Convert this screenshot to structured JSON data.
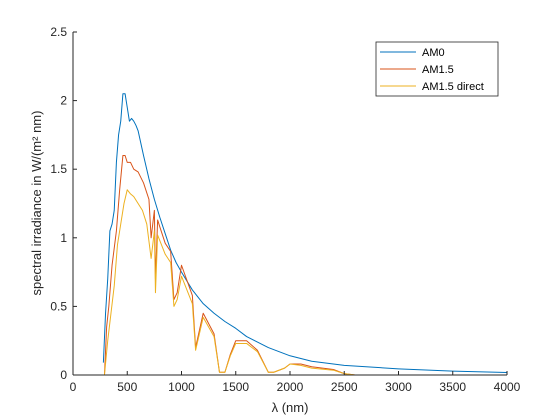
{
  "chart_data": {
    "type": "line",
    "xlabel": "λ (nm)",
    "ylabel": "spectral irradiance in W/(m² nm)",
    "xlim": [
      0,
      4000
    ],
    "ylim": [
      0,
      2.5
    ],
    "xticks": [
      "0",
      "500",
      "1000",
      "1500",
      "2000",
      "2500",
      "3000",
      "3500",
      "4000"
    ],
    "yticks": [
      "0",
      "0.5",
      "1",
      "1.5",
      "2",
      "2.5"
    ],
    "grid": false,
    "legend_position": "top-right",
    "series": [
      {
        "name": "AM0",
        "color": "#0072BD",
        "x": [
          280,
          300,
          320,
          340,
          360,
          380,
          400,
          420,
          440,
          460,
          480,
          500,
          520,
          540,
          560,
          580,
          600,
          650,
          700,
          750,
          800,
          850,
          900,
          950,
          1000,
          1100,
          1200,
          1300,
          1400,
          1500,
          1600,
          1700,
          1800,
          1900,
          2000,
          2200,
          2500,
          3000,
          3500,
          4000
        ],
        "y": [
          0.09,
          0.45,
          0.7,
          1.05,
          1.1,
          1.2,
          1.55,
          1.75,
          1.85,
          2.05,
          2.05,
          1.95,
          1.85,
          1.87,
          1.85,
          1.82,
          1.78,
          1.6,
          1.43,
          1.28,
          1.15,
          1.03,
          0.91,
          0.82,
          0.75,
          0.62,
          0.52,
          0.45,
          0.39,
          0.34,
          0.28,
          0.24,
          0.2,
          0.17,
          0.14,
          0.1,
          0.07,
          0.045,
          0.028,
          0.018
        ]
      },
      {
        "name": "AM1.5",
        "color": "#D95319",
        "x": [
          290,
          310,
          330,
          360,
          400,
          430,
          460,
          480,
          500,
          530,
          560,
          600,
          650,
          700,
          720,
          750,
          760,
          780,
          800,
          850,
          900,
          930,
          960,
          1000,
          1100,
          1130,
          1200,
          1300,
          1350,
          1400,
          1450,
          1500,
          1600,
          1700,
          1800,
          1850,
          1950,
          2000,
          2100,
          2200,
          2400,
          2500,
          2600,
          3000,
          3500,
          4000
        ],
        "y": [
          0,
          0.35,
          0.5,
          0.8,
          1.05,
          1.35,
          1.6,
          1.6,
          1.55,
          1.55,
          1.5,
          1.48,
          1.4,
          1.28,
          1.0,
          1.2,
          0.7,
          1.13,
          1.08,
          0.96,
          0.9,
          0.55,
          0.6,
          0.8,
          0.58,
          0.2,
          0.45,
          0.3,
          0.02,
          0.02,
          0.15,
          0.25,
          0.25,
          0.18,
          0.02,
          0.02,
          0.05,
          0.08,
          0.08,
          0.06,
          0.04,
          0.01,
          0,
          0,
          0,
          0
        ]
      },
      {
        "name": "AM1.5 direct",
        "color": "#EDB120",
        "x": [
          290,
          320,
          350,
          380,
          410,
          440,
          470,
          500,
          530,
          560,
          600,
          640,
          680,
          720,
          750,
          760,
          780,
          800,
          850,
          900,
          930,
          960,
          1000,
          1100,
          1130,
          1200,
          1300,
          1350,
          1400,
          1450,
          1500,
          1600,
          1700,
          1800,
          1850,
          1950,
          2000,
          2100,
          2200,
          2400,
          2500,
          2600,
          3000,
          3500,
          4000
        ],
        "y": [
          0,
          0.25,
          0.45,
          0.65,
          0.95,
          1.1,
          1.25,
          1.35,
          1.32,
          1.3,
          1.25,
          1.2,
          1.1,
          0.85,
          1.05,
          0.6,
          1.02,
          0.98,
          0.88,
          0.82,
          0.5,
          0.55,
          0.72,
          0.52,
          0.18,
          0.42,
          0.28,
          0.02,
          0.02,
          0.14,
          0.23,
          0.23,
          0.17,
          0.02,
          0.02,
          0.05,
          0.08,
          0.07,
          0.05,
          0.035,
          0.01,
          0,
          0,
          0,
          0
        ]
      }
    ]
  }
}
